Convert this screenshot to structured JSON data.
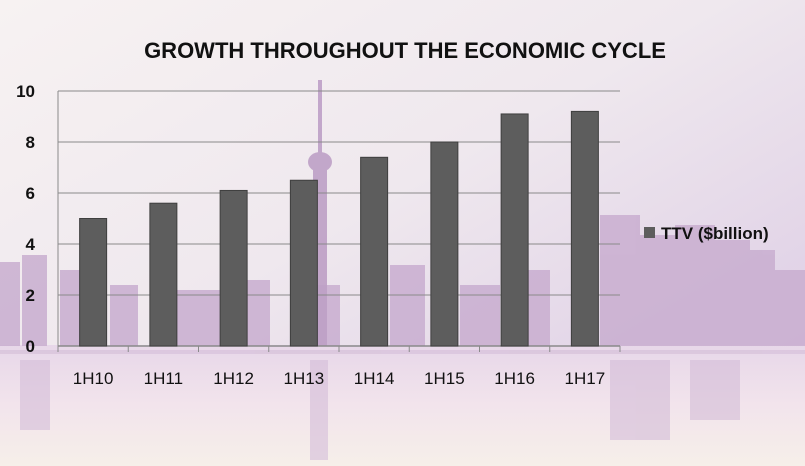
{
  "chart_data": {
    "type": "bar",
    "title": "GROWTH THROUGHOUT THE ECONOMIC CYCLE",
    "categories": [
      "1H10",
      "1H11",
      "1H12",
      "1H13",
      "1H14",
      "1H15",
      "1H16",
      "1H17"
    ],
    "series": [
      {
        "name": "TTV ($billion)",
        "values": [
          5.0,
          5.6,
          6.1,
          6.5,
          7.4,
          8.0,
          9.1,
          9.2
        ]
      }
    ],
    "ylim": [
      0,
      10
    ],
    "yticks": [
      "0",
      "2",
      "4",
      "6",
      "8",
      "10"
    ],
    "grid": true,
    "legend": "right",
    "colors": {
      "bar": "#5d5d5d",
      "bar_border": "#3f3f3f",
      "grid": "#8a8a8a"
    }
  },
  "background": {
    "description_icon": "city-skyline-waterfront"
  }
}
